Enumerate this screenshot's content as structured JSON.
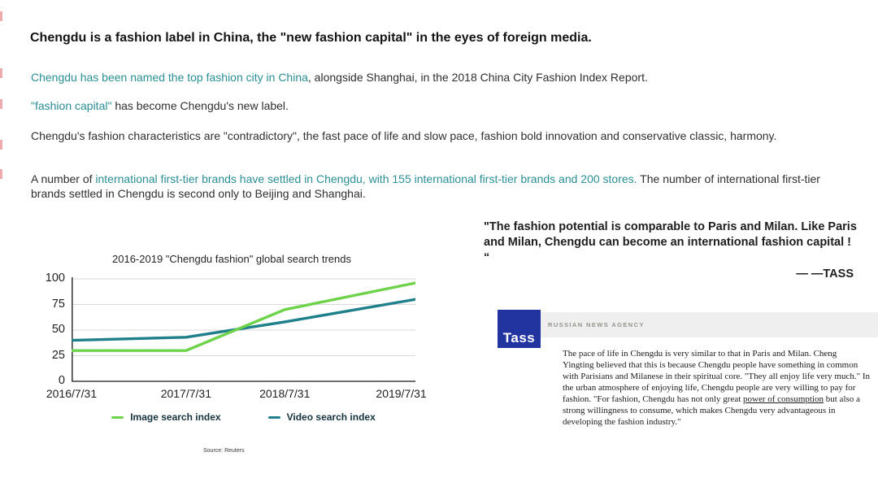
{
  "slide": {
    "title": "Chengdu is a fashion label in China, the \"new fashion capital\" in the eyes of foreign media.",
    "link_color": "#2b8e94",
    "paragraphs": {
      "p1": {
        "link": "Chengdu has been named the top fashion city in China",
        "rest": ", alongside Shanghai, in the 2018 China City Fashion Index Report."
      },
      "p2": {
        "link": "\"fashion capital\"",
        "rest": " has become Chengdu's new label."
      },
      "p3": {
        "text": "Chengdu's fashion characteristics are \"contradictory\", the fast pace of life and slow pace, fashion bold innovation and conservative classic, harmony."
      },
      "p4": {
        "prefix": "A number of ",
        "link": "international first-tier brands have settled in Chengdu, with 155 international first-tier brands and 200 stores.",
        "suffix": " The number of international first-tier brands settled in Chengdu is second only to Beijing and Shanghai."
      }
    }
  },
  "chart_data": {
    "type": "line",
    "title": "2016-2019 \"Chengdu fashion\" global search trends",
    "categories": [
      "2016/7/31",
      "2017/7/31",
      "2018/7/31",
      "2019/7/31"
    ],
    "series": [
      {
        "name": "Image search index",
        "color": "#6fd24b",
        "values": [
          30,
          30,
          70,
          96
        ]
      },
      {
        "name": "Video search index",
        "color": "#1f7f8a",
        "values": [
          40,
          43,
          58,
          80
        ]
      }
    ],
    "yticks": [
      0,
      25,
      50,
      75,
      100
    ],
    "ylim": [
      0,
      100
    ],
    "grid": true,
    "legend_position": "bottom",
    "source": "Source: Reuters"
  },
  "quote": {
    "text": "\"The fashion potential is comparable to Paris and Milan. Like Paris and Milan, Chengdu can become an international fashion capital ! “",
    "attribution": "— —TASS"
  },
  "tass": {
    "logo_text": "Tass",
    "brand_color": "#2134a0",
    "agency_label": "RUSSIAN NEWS AGENCY",
    "paragraph_before": "The pace of life in Chengdu is very similar to that in Paris and Milan. Cheng Yingting believed that this is because Chengdu people have something in common with Parisians and Milanese in their spiritual core. \"They all enjoy life very much.\" In the urban atmosphere of enjoying life, Chengdu people are very willing to pay for fashion. \"For fashion, Chengdu has not only great ",
    "paragraph_link": "power of consumption",
    "paragraph_after": " but also a strong willingness to consume, which makes Chengdu very advantageous in developing the fashion industry.\""
  },
  "decorations": {
    "edge_mark_color": "#e06666",
    "edge_marks_y": [
      14,
      84,
      122,
      172,
      208
    ]
  }
}
